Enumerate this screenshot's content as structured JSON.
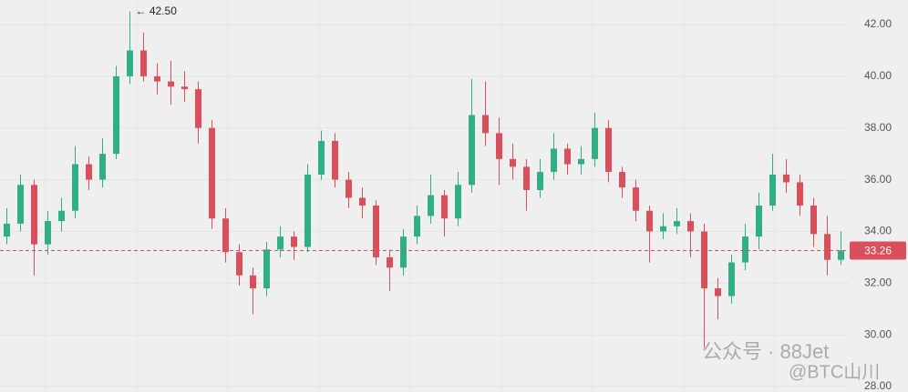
{
  "chart_data": {
    "type": "candlestick",
    "ylim": [
      27.79,
      42.95
    ],
    "yticks": [
      {
        "value": 28,
        "label": "28.00"
      },
      {
        "value": 30,
        "label": "30.00"
      },
      {
        "value": 32,
        "label": "32.00"
      },
      {
        "value": 34,
        "label": "34.00"
      },
      {
        "value": 36,
        "label": "36.00"
      },
      {
        "value": 38,
        "label": "38.00"
      },
      {
        "value": 40,
        "label": "40.00"
      },
      {
        "value": 42,
        "label": "42.00"
      }
    ],
    "grid": true,
    "up_color": "#2fae88",
    "down_color": "#d9505c",
    "open": [
      33.8,
      34.3,
      35.8,
      33.5,
      34.4,
      34.8,
      36.6,
      36.0,
      37.0,
      40.0,
      41.0,
      40.0,
      39.8,
      39.6,
      39.5,
      38.0,
      34.5,
      33.2,
      32.3,
      31.8,
      33.3,
      33.8,
      33.4,
      36.2,
      37.5,
      36.0,
      35.3,
      35.0,
      33.0,
      32.6,
      33.8,
      34.6,
      35.4,
      34.5,
      35.8,
      38.5,
      37.8,
      36.8,
      36.5,
      35.6,
      36.3,
      37.2,
      36.6,
      36.8,
      38.0,
      36.3,
      35.7,
      34.8,
      34.0,
      34.2,
      34.4,
      34.0,
      31.8,
      31.5,
      32.8,
      33.8,
      35.0,
      36.2,
      35.9,
      35.0,
      33.9,
      32.9
    ],
    "high": [
      34.9,
      36.2,
      36.0,
      34.8,
      35.3,
      37.3,
      36.9,
      37.6,
      40.4,
      42.5,
      41.7,
      40.5,
      40.6,
      40.2,
      39.8,
      38.3,
      34.9,
      33.5,
      32.6,
      33.6,
      34.2,
      34.0,
      36.6,
      37.9,
      37.8,
      36.3,
      35.7,
      35.2,
      33.3,
      34.1,
      35.0,
      36.2,
      35.6,
      36.3,
      39.9,
      39.8,
      38.4,
      37.4,
      36.8,
      36.8,
      37.8,
      37.4,
      37.3,
      38.6,
      38.3,
      36.5,
      36.0,
      35.0,
      34.7,
      34.9,
      34.7,
      34.3,
      32.2,
      33.1,
      34.3,
      35.5,
      37.0,
      36.8,
      36.2,
      35.3,
      34.6,
      34.0
    ],
    "low": [
      33.5,
      34.0,
      32.3,
      33.1,
      34.0,
      34.5,
      35.6,
      35.7,
      36.8,
      39.7,
      39.8,
      39.3,
      38.9,
      39.0,
      37.4,
      34.1,
      32.8,
      31.9,
      30.8,
      31.5,
      33.0,
      32.9,
      33.2,
      36.0,
      35.7,
      34.9,
      34.5,
      32.7,
      31.7,
      32.3,
      33.5,
      34.3,
      33.8,
      34.2,
      35.5,
      37.3,
      35.8,
      36.0,
      34.8,
      35.3,
      36.0,
      36.2,
      36.2,
      36.5,
      35.9,
      35.3,
      34.4,
      32.8,
      33.7,
      33.9,
      33.0,
      29.5,
      30.6,
      31.2,
      32.5,
      33.3,
      34.8,
      35.5,
      34.6,
      33.4,
      32.3,
      32.7
    ],
    "close": [
      34.3,
      35.8,
      33.5,
      34.4,
      34.8,
      36.6,
      36.0,
      37.0,
      40.0,
      41.0,
      40.0,
      39.8,
      39.6,
      39.5,
      38.0,
      34.5,
      33.2,
      32.3,
      31.8,
      33.3,
      33.8,
      33.4,
      36.2,
      37.5,
      36.0,
      35.3,
      35.0,
      33.0,
      32.6,
      33.8,
      34.6,
      35.4,
      34.5,
      35.8,
      38.5,
      37.8,
      36.8,
      36.5,
      35.6,
      36.3,
      37.2,
      36.6,
      36.8,
      38.0,
      36.3,
      35.7,
      34.8,
      34.0,
      34.2,
      34.4,
      34.0,
      31.8,
      31.5,
      32.8,
      33.8,
      35.0,
      36.2,
      35.9,
      35.0,
      33.9,
      32.9,
      33.26
    ],
    "high_marker": {
      "text": "← 42.50",
      "value": 42.5,
      "index": 9
    },
    "last_price": 33.26,
    "watermark": [
      "公众号 · 88Jet",
      "@BTC山川"
    ]
  }
}
